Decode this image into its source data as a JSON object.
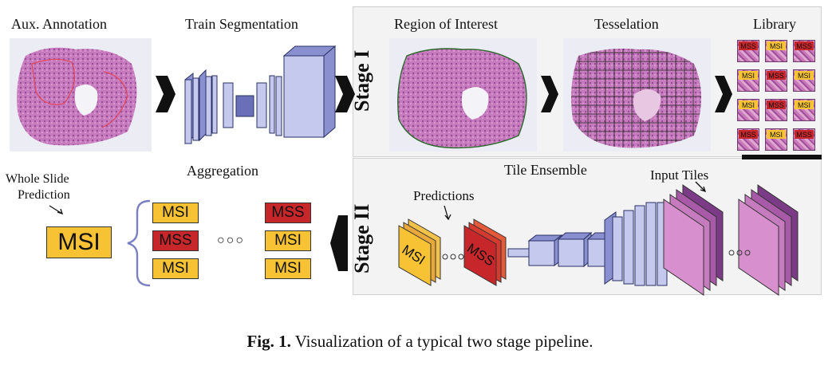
{
  "stage1": {
    "title": "Stage I",
    "steps": [
      "Aux. Annotation",
      "Train Segmentation",
      "Region of Interest",
      "Tesselation",
      "Library"
    ]
  },
  "stage2": {
    "title": "Stage II",
    "ensemble_label": "Tile Ensemble",
    "input_tiles_label": "Input Tiles",
    "predictions_label": "Predictions",
    "aggregation_label": "Aggregation",
    "whole_slide_line1": "Whole Slide",
    "whole_slide_line2": "Prediction",
    "final_prediction": "MSI",
    "pred_col1": [
      "MSI",
      "MSS",
      "MSI"
    ],
    "pred_col2": [
      "MSS",
      "MSI",
      "MSI"
    ],
    "ellipsis": "○○○",
    "net_pred_1": "MSI",
    "net_pred_2": "MSS"
  },
  "library_tiles": [
    "MSS",
    "MSI",
    "MSS",
    "MSI",
    "MSS",
    "MSI",
    "MSI",
    "MSS",
    "MSI",
    "MSS",
    "MSI",
    "MSS"
  ],
  "colors": {
    "msi": "#f7c234",
    "mss": "#c7262a",
    "layer": "#8a90cf",
    "stain": "#c77bbf"
  },
  "caption": {
    "bold": "Fig. 1.",
    "text": " Visualization of a typical two stage pipeline."
  }
}
